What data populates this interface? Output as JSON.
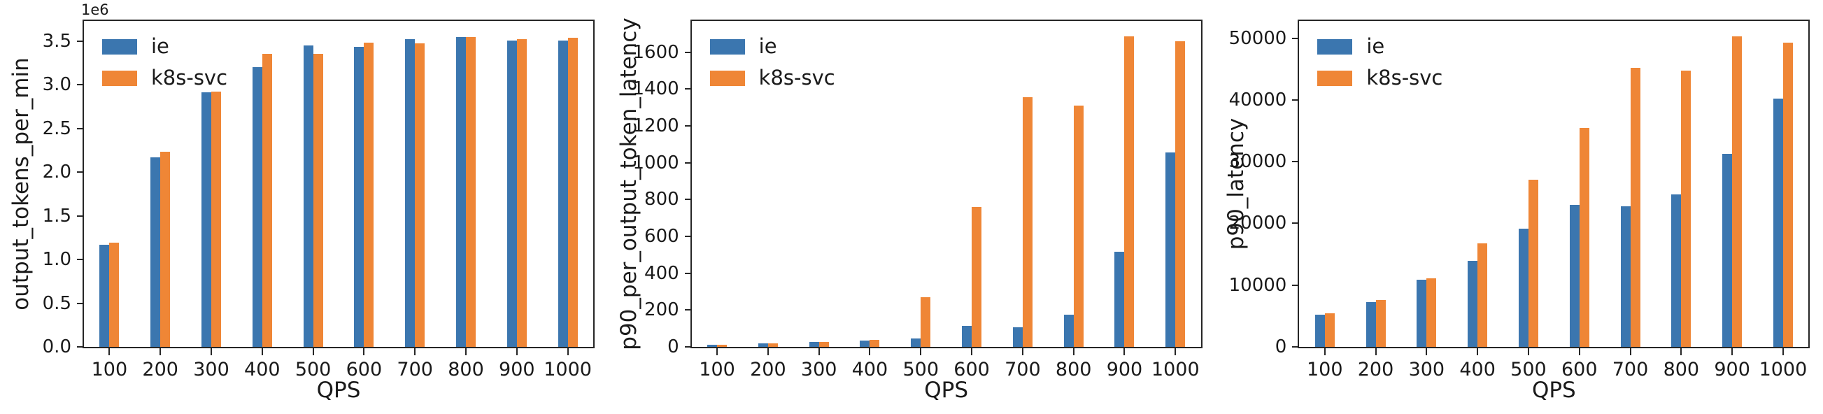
{
  "accent_colors": {
    "ie": "#3b76af",
    "k8s_svc": "#ef8636"
  },
  "chart_data": [
    {
      "type": "bar",
      "title": "",
      "xlabel": "QPS",
      "ylabel": "output_tokens_per_min",
      "axis_offset_text": "1e6",
      "grid": false,
      "legend_position": "upper-left",
      "categories": [
        100,
        200,
        300,
        400,
        500,
        600,
        700,
        800,
        900,
        1000
      ],
      "series": [
        {
          "name": "ie",
          "color": "#3b76af",
          "values": [
            1170000,
            2170000,
            2910000,
            3200000,
            3450000,
            3430000,
            3520000,
            3545000,
            3510000,
            3505000
          ]
        },
        {
          "name": "k8s-svc",
          "color": "#ef8636",
          "values": [
            1190000,
            2230000,
            2920000,
            3350000,
            3350000,
            3480000,
            3470000,
            3550000,
            3520000,
            3540000
          ]
        }
      ],
      "ylim": [
        0,
        3730000
      ],
      "ytick_values": [
        0,
        500000,
        1000000,
        1500000,
        2000000,
        2500000,
        3000000,
        3500000
      ],
      "ytick_labels": [
        "0.0",
        "0.5",
        "1.0",
        "1.5",
        "2.0",
        "2.5",
        "3.0",
        "3.5"
      ]
    },
    {
      "type": "bar",
      "title": "",
      "xlabel": "QPS",
      "ylabel": "p90_per_output_token_latency",
      "axis_offset_text": "",
      "grid": false,
      "legend_position": "upper-left",
      "categories": [
        100,
        200,
        300,
        400,
        500,
        600,
        700,
        800,
        900,
        1000
      ],
      "series": [
        {
          "name": "ie",
          "color": "#3b76af",
          "values": [
            10,
            18,
            25,
            33,
            47,
            115,
            108,
            175,
            515,
            1055
          ]
        },
        {
          "name": "k8s-svc",
          "color": "#ef8636",
          "values": [
            10,
            18,
            25,
            38,
            270,
            760,
            1355,
            1310,
            1685,
            1660
          ]
        }
      ],
      "ylim": [
        0,
        1770
      ],
      "ytick_values": [
        0,
        200,
        400,
        600,
        800,
        1000,
        1200,
        1400,
        1600
      ],
      "ytick_labels": [
        "0",
        "200",
        "400",
        "600",
        "800",
        "1000",
        "1200",
        "1400",
        "1600"
      ]
    },
    {
      "type": "bar",
      "title": "",
      "xlabel": "QPS",
      "ylabel": "p90_latency",
      "axis_offset_text": "",
      "grid": false,
      "legend_position": "upper-left",
      "categories": [
        100,
        200,
        300,
        400,
        500,
        600,
        700,
        800,
        900,
        1000
      ],
      "series": [
        {
          "name": "ie",
          "color": "#3b76af",
          "values": [
            5200,
            7300,
            10900,
            13900,
            19200,
            23000,
            22800,
            24700,
            31300,
            40200
          ]
        },
        {
          "name": "k8s-svc",
          "color": "#ef8636",
          "values": [
            5400,
            7600,
            11100,
            16800,
            27100,
            35500,
            45200,
            44800,
            50300,
            49300
          ]
        }
      ],
      "ylim": [
        0,
        52800
      ],
      "ytick_values": [
        0,
        10000,
        20000,
        30000,
        40000,
        50000
      ],
      "ytick_labels": [
        "0",
        "10000",
        "20000",
        "30000",
        "40000",
        "50000"
      ]
    }
  ]
}
